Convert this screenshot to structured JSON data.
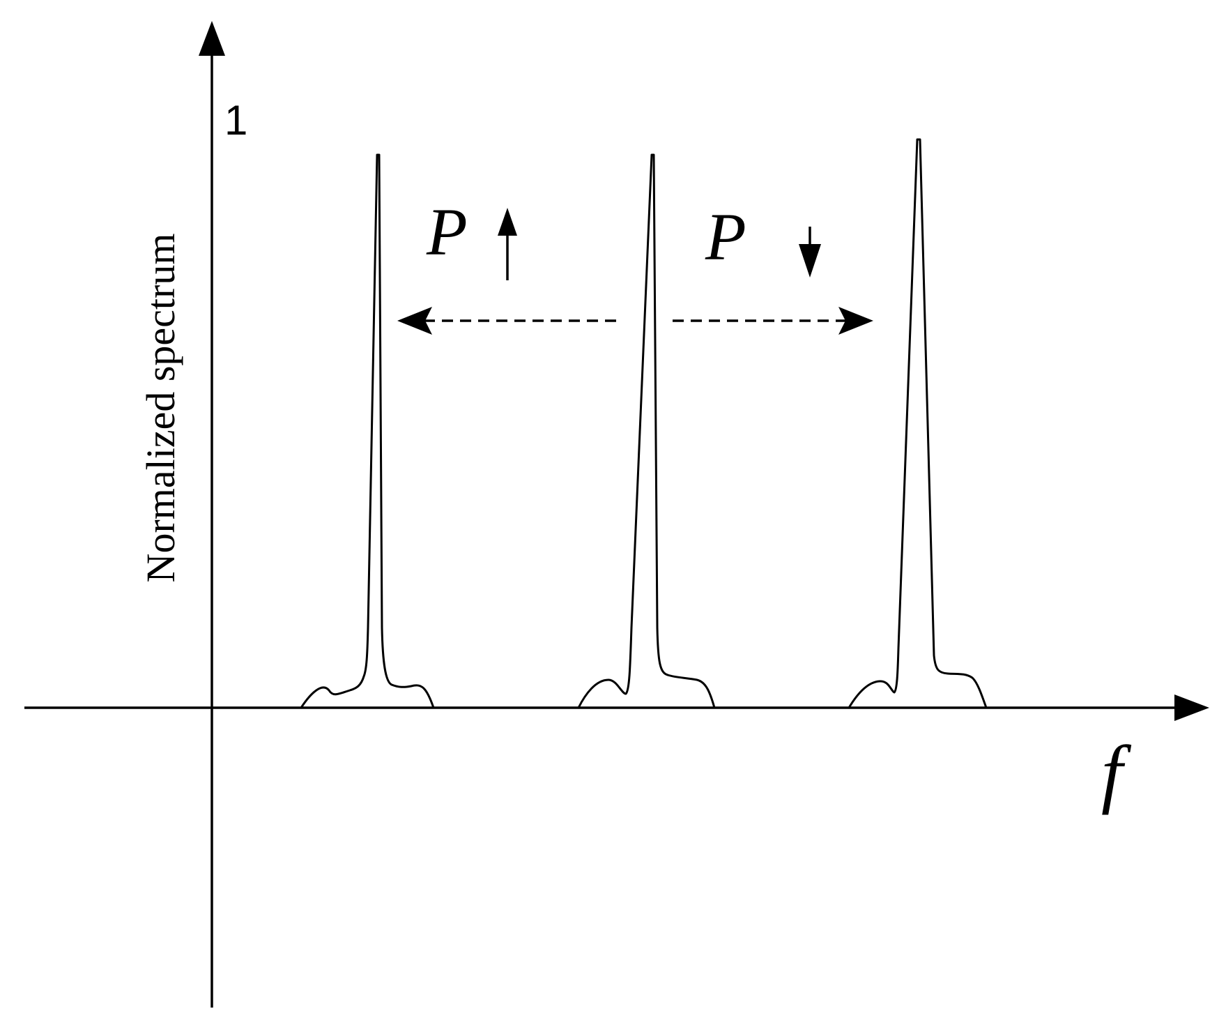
{
  "axes": {
    "y_label": "Normalized spectrum",
    "y_tick": "1",
    "x_label": "f"
  },
  "annotations": {
    "left": {
      "label": "P",
      "arrow": "up"
    },
    "right": {
      "label": "P",
      "arrow": "down"
    }
  },
  "peaks": [
    {
      "name": "left-peak",
      "relative_height": 0.97
    },
    {
      "name": "center-peak",
      "relative_height": 0.97
    },
    {
      "name": "right-peak",
      "relative_height": 1.0
    }
  ]
}
